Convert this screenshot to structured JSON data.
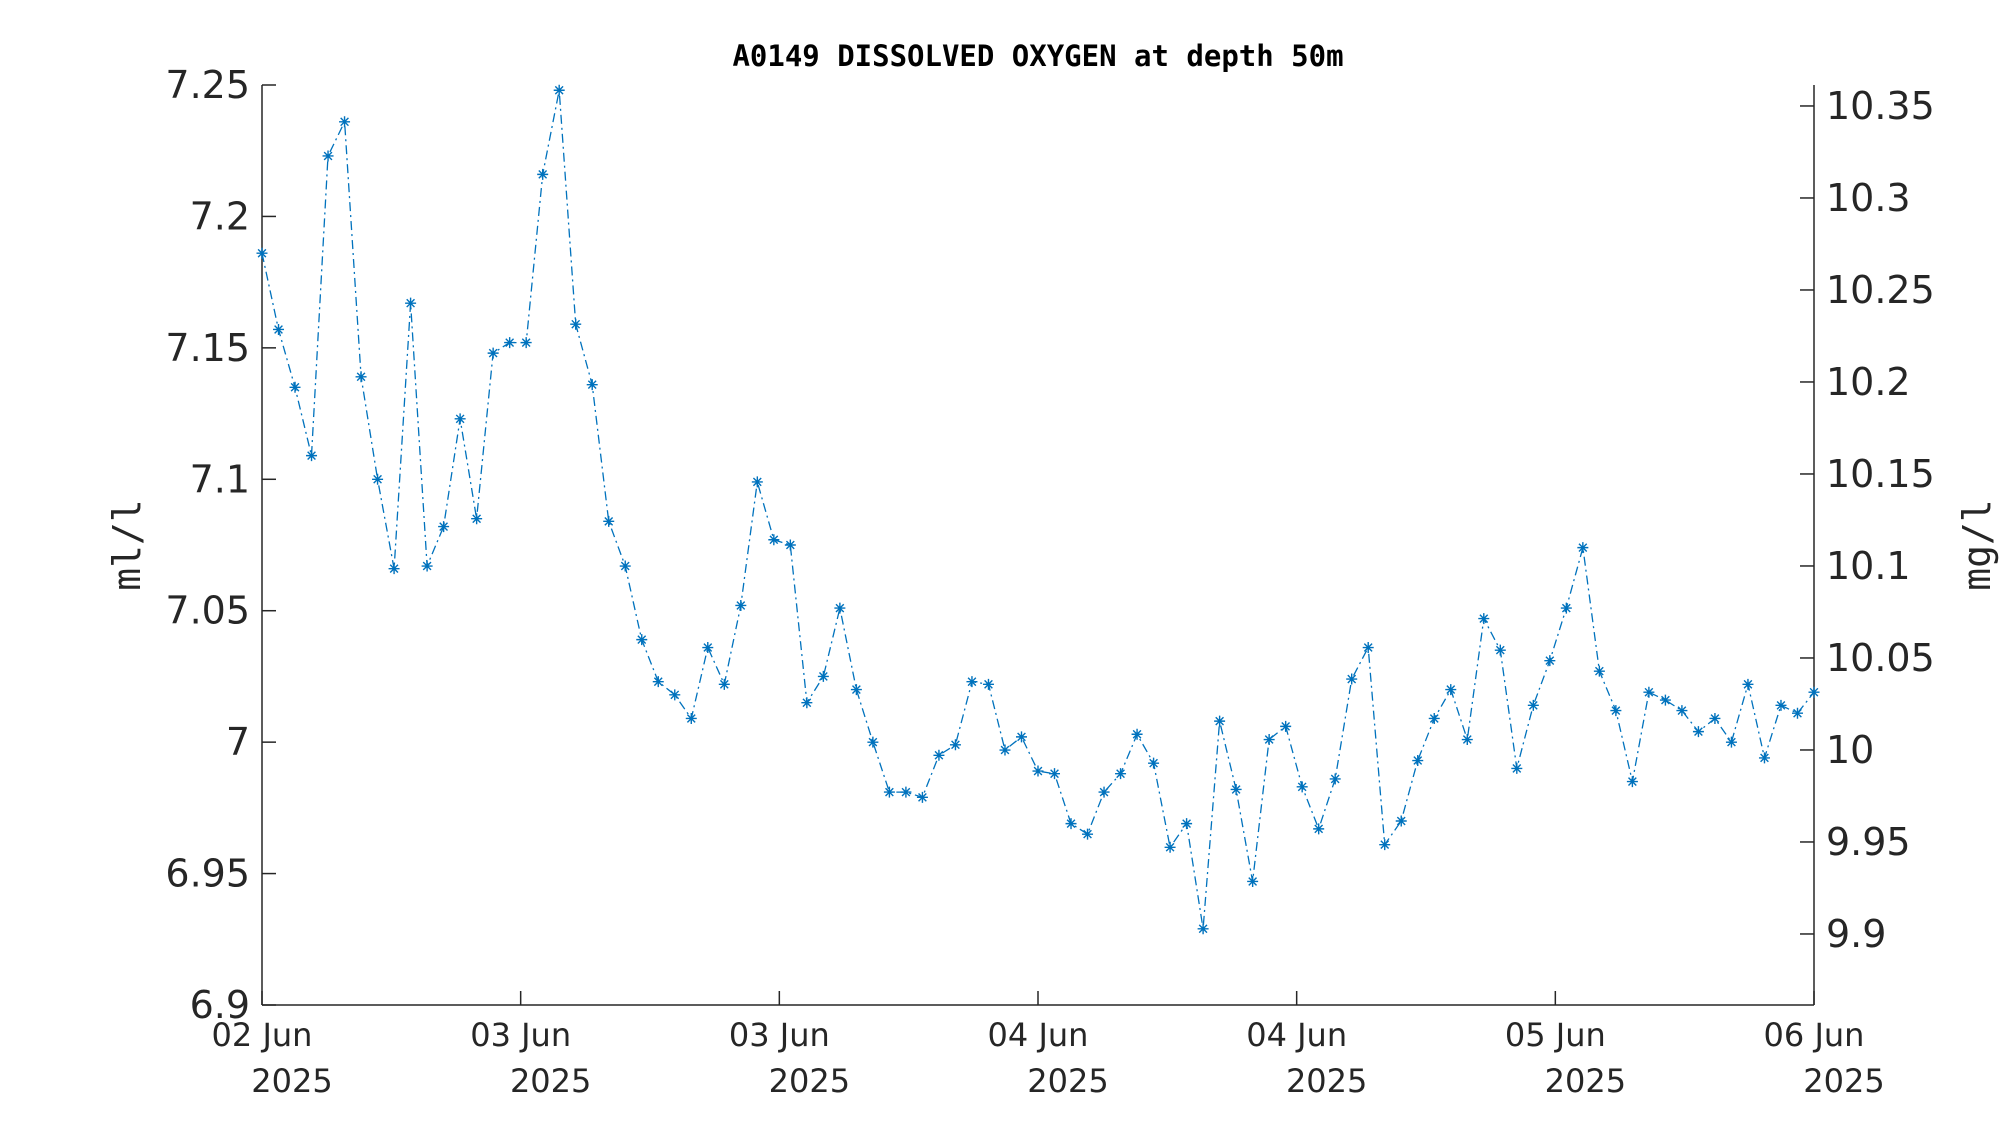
{
  "chart_data": {
    "type": "line",
    "title": "A0149 DISSOLVED OXYGEN at depth 50m",
    "ylabel_left": "ml/l",
    "ylabel_right": "mg/l",
    "ylim_left": [
      6.9,
      7.25
    ],
    "ylim_right": [
      9.8614,
      10.3614
    ],
    "left_ticks": [
      "6.9",
      "6.95",
      "7",
      "7.05",
      "7.1",
      "7.15",
      "7.2",
      "7.25"
    ],
    "right_ticks": [
      "9.9",
      "9.95",
      "10",
      "10.05",
      "10.1",
      "10.15",
      "10.2",
      "10.25",
      "10.3",
      "10.35"
    ],
    "x_ticks": [
      {
        "line1": "02 Jun",
        "line2": "2025"
      },
      {
        "line1": "03 Jun",
        "line2": "2025"
      },
      {
        "line1": "03 Jun",
        "line2": "2025"
      },
      {
        "line1": "04 Jun",
        "line2": "2025"
      },
      {
        "line1": "04 Jun",
        "line2": "2025"
      },
      {
        "line1": "05 Jun",
        "line2": "2025"
      },
      {
        "line1": "06 Jun",
        "line2": "2025"
      }
    ],
    "series": [
      {
        "color": "#0072bd",
        "line_style": "dash-dot",
        "marker": "asterisk",
        "values": [
          7.186,
          7.157,
          7.135,
          7.109,
          7.223,
          7.236,
          7.139,
          7.1,
          7.066,
          7.167,
          7.067,
          7.082,
          7.123,
          7.085,
          7.148,
          7.152,
          7.152,
          7.216,
          7.248,
          7.159,
          7.136,
          7.084,
          7.067,
          7.039,
          7.023,
          7.018,
          7.009,
          7.036,
          7.022,
          7.052,
          7.099,
          7.077,
          7.075,
          7.015,
          7.025,
          7.051,
          7.02,
          7.0,
          6.981,
          6.981,
          6.979,
          6.995,
          6.999,
          7.023,
          7.022,
          6.997,
          7.002,
          6.989,
          6.988,
          6.969,
          6.965,
          6.981,
          6.988,
          7.003,
          6.992,
          6.96,
          6.969,
          6.929,
          7.008,
          6.982,
          6.947,
          7.001,
          7.006,
          6.983,
          6.967,
          6.986,
          7.024,
          7.036,
          6.961,
          6.97,
          6.993,
          7.009,
          7.02,
          7.001,
          7.047,
          7.035,
          6.99,
          7.014,
          7.031,
          7.051,
          7.074,
          7.027,
          7.012,
          6.985,
          7.019,
          7.016,
          7.012,
          7.004,
          7.009,
          7.0,
          7.022,
          6.994,
          7.014,
          7.011,
          7.019
        ]
      }
    ]
  }
}
